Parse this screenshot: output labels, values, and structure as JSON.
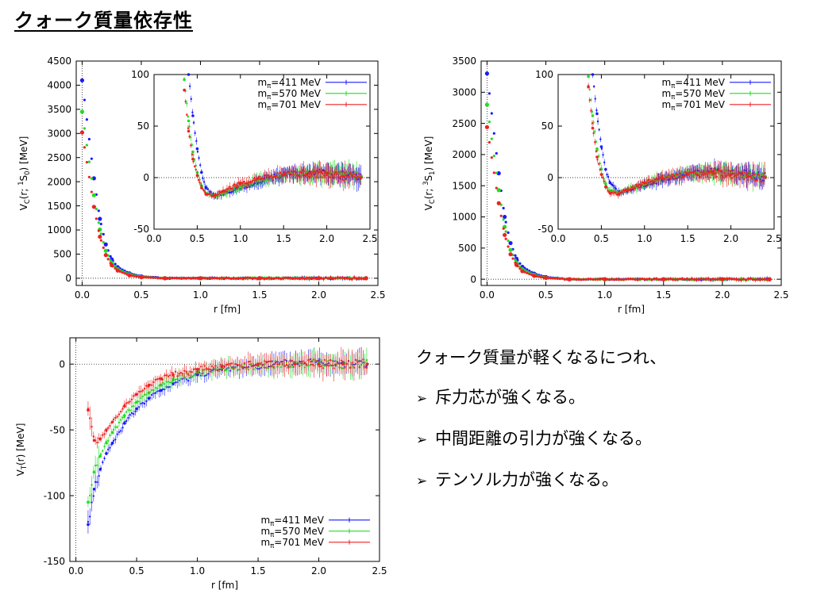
{
  "title": "クォーク質量依存性",
  "legend": [
    {
      "label": "m",
      "sub": "π",
      "value": "=411 MeV",
      "color": "#1a1aff"
    },
    {
      "label": "m",
      "sub": "π",
      "value": "=570 MeV",
      "color": "#22dd22"
    },
    {
      "label": "m",
      "sub": "π",
      "value": "=701 MeV",
      "color": "#ee2222"
    }
  ],
  "bullets": {
    "intro": "クォーク質量が軽くなるにつれ、",
    "marker": "➢",
    "items": [
      "斥力芯が強くなる。",
      "中間距離の引力が強くなる。",
      "テンソル力が強くなる。"
    ]
  },
  "chart_data": [
    {
      "type": "scatter",
      "id": "vc-1s0",
      "xlabel": "r [fm]",
      "ylabel": "V_C(r; 1S0) [MeV]",
      "ylabel_parts": {
        "base": "V",
        "sub": "C",
        "mid": "(r; ",
        "sup": "1",
        "tail_base": "S",
        "tail_sub": "0",
        "end": ") [MeV]"
      },
      "xlim": [
        -0.05,
        2.5
      ],
      "ylim": [
        -150,
        4500
      ],
      "xticks": [
        "0.0",
        "0.5",
        "1.0",
        "1.5",
        "2.0",
        "2.5"
      ],
      "yticks": [
        "0",
        "500",
        "1000",
        "1500",
        "2000",
        "2500",
        "3000",
        "3500",
        "4000",
        "4500"
      ],
      "series": [
        {
          "name": "mπ=411 MeV",
          "color": "#1a1aff",
          "x": [
            0.0,
            0.1,
            0.15,
            0.2,
            0.25,
            0.3,
            0.4,
            0.5,
            0.7,
            1.0,
            1.5,
            2.0,
            2.4
          ],
          "y": [
            4100,
            2070,
            1230,
            700,
            390,
            230,
            100,
            40,
            0,
            0,
            0,
            0,
            0
          ]
        },
        {
          "name": "mπ=570 MeV",
          "color": "#22dd22",
          "x": [
            0.0,
            0.1,
            0.15,
            0.2,
            0.25,
            0.3,
            0.4,
            0.5,
            0.7,
            1.0,
            1.5,
            2.0,
            2.4
          ],
          "y": [
            3450,
            1720,
            1010,
            570,
            320,
            190,
            80,
            30,
            0,
            0,
            0,
            0,
            0
          ]
        },
        {
          "name": "mπ=701 MeV",
          "color": "#ee2222",
          "x": [
            0.0,
            0.1,
            0.15,
            0.2,
            0.25,
            0.3,
            0.4,
            0.5,
            0.7,
            1.0,
            1.5,
            2.0,
            2.4
          ],
          "y": [
            3020,
            1480,
            860,
            480,
            270,
            160,
            60,
            20,
            0,
            0,
            0,
            0,
            0
          ]
        }
      ],
      "inset": {
        "xlim": [
          0,
          2.5
        ],
        "ylim": [
          -50,
          100
        ],
        "xticks": [
          "0.0",
          "0.5",
          "1.0",
          "1.5",
          "2.0",
          "2.5"
        ],
        "yticks": [
          "-50",
          "0",
          "50",
          "100"
        ],
        "series": [
          {
            "color": "#1a1aff",
            "x": [
              0.4,
              0.45,
              0.5,
              0.55,
              0.6,
              0.7,
              0.8,
              1.0,
              1.2,
              1.5,
              1.8,
              2.0,
              2.2,
              2.4
            ],
            "y": [
              100,
              60,
              28,
              5,
              -10,
              -18,
              -16,
              -10,
              -4,
              3,
              5,
              4,
              2,
              1
            ]
          },
          {
            "color": "#22dd22",
            "x": [
              0.35,
              0.4,
              0.45,
              0.5,
              0.55,
              0.6,
              0.7,
              0.8,
              1.0,
              1.2,
              1.5,
              1.8,
              2.0,
              2.2,
              2.4
            ],
            "y": [
              95,
              55,
              25,
              5,
              -8,
              -15,
              -18,
              -15,
              -9,
              -3,
              2,
              4,
              3,
              2,
              1
            ]
          },
          {
            "color": "#ee2222",
            "x": [
              0.35,
              0.4,
              0.45,
              0.5,
              0.55,
              0.6,
              0.7,
              0.8,
              1.0,
              1.2,
              1.5,
              1.8,
              2.0,
              2.2,
              2.4
            ],
            "y": [
              85,
              45,
              18,
              2,
              -10,
              -16,
              -17,
              -13,
              -6,
              -1,
              3,
              4,
              3,
              1,
              0
            ]
          }
        ]
      }
    },
    {
      "type": "scatter",
      "id": "vc-3s1",
      "xlabel": "r [fm]",
      "ylabel": "V_C(r; 3S1) [MeV]",
      "ylabel_parts": {
        "base": "V",
        "sub": "C",
        "mid": "(r; ",
        "sup": "3",
        "tail_base": "S",
        "tail_sub": "1",
        "end": ") [MeV]"
      },
      "xlim": [
        -0.05,
        2.5
      ],
      "ylim": [
        -100,
        3500
      ],
      "xticks": [
        "0.0",
        "0.5",
        "1.0",
        "1.5",
        "2.0",
        "2.5"
      ],
      "yticks": [
        "0",
        "500",
        "1000",
        "1500",
        "2000",
        "2500",
        "3000",
        "3500"
      ],
      "series": [
        {
          "name": "mπ=411 MeV",
          "color": "#1a1aff",
          "x": [
            0.0,
            0.1,
            0.15,
            0.2,
            0.25,
            0.3,
            0.4,
            0.5,
            0.7,
            1.0,
            1.5,
            2.0,
            2.4
          ],
          "y": [
            3300,
            1700,
            1000,
            580,
            330,
            200,
            90,
            35,
            0,
            0,
            0,
            0,
            0
          ]
        },
        {
          "name": "mπ=570 MeV",
          "color": "#22dd22",
          "x": [
            0.0,
            0.1,
            0.15,
            0.2,
            0.25,
            0.3,
            0.4,
            0.5,
            0.7,
            1.0,
            1.5,
            2.0,
            2.4
          ],
          "y": [
            2800,
            1430,
            840,
            470,
            270,
            160,
            70,
            25,
            0,
            0,
            0,
            0,
            0
          ]
        },
        {
          "name": "mπ=701 MeV",
          "color": "#ee2222",
          "x": [
            0.0,
            0.1,
            0.15,
            0.2,
            0.25,
            0.3,
            0.4,
            0.5,
            0.7,
            1.0,
            1.5,
            2.0,
            2.4
          ],
          "y": [
            2440,
            1220,
            710,
            400,
            230,
            130,
            55,
            20,
            0,
            0,
            0,
            0,
            0
          ]
        }
      ],
      "inset": {
        "xlim": [
          0,
          2.5
        ],
        "ylim": [
          -50,
          100
        ],
        "xticks": [
          "0.0",
          "0.5",
          "1.0",
          "1.5",
          "2.0",
          "2.5"
        ],
        "yticks": [
          "-50",
          "0",
          "50",
          "100"
        ],
        "series": [
          {
            "color": "#1a1aff",
            "x": [
              0.4,
              0.45,
              0.5,
              0.55,
              0.6,
              0.7,
              0.8,
              1.0,
              1.2,
              1.5,
              1.8,
              2.0,
              2.2,
              2.4
            ],
            "y": [
              100,
              62,
              30,
              8,
              -5,
              -14,
              -13,
              -8,
              -2,
              4,
              6,
              5,
              3,
              1
            ]
          },
          {
            "color": "#22dd22",
            "x": [
              0.35,
              0.4,
              0.45,
              0.5,
              0.55,
              0.6,
              0.7,
              0.8,
              1.0,
              1.2,
              1.5,
              1.8,
              2.0,
              2.2,
              2.4
            ],
            "y": [
              98,
              60,
              28,
              8,
              -6,
              -13,
              -15,
              -12,
              -6,
              0,
              4,
              5,
              4,
              2,
              1
            ]
          },
          {
            "color": "#ee2222",
            "x": [
              0.35,
              0.4,
              0.45,
              0.5,
              0.55,
              0.6,
              0.7,
              0.8,
              1.0,
              1.2,
              1.5,
              1.8,
              2.0,
              2.2,
              2.4
            ],
            "y": [
              88,
              48,
              20,
              3,
              -9,
              -15,
              -16,
              -12,
              -5,
              0,
              3,
              4,
              3,
              1,
              0
            ]
          }
        ]
      }
    },
    {
      "type": "scatter",
      "id": "vt",
      "xlabel": "r [fm]",
      "ylabel": "V_T(r) [MeV]",
      "ylabel_parts": {
        "base": "V",
        "sub": "T",
        "mid": "(r) [MeV]",
        "sup": "",
        "tail_base": "",
        "tail_sub": "",
        "end": ""
      },
      "xlim": [
        -0.05,
        2.5
      ],
      "ylim": [
        -150,
        20
      ],
      "xticks": [
        "0.0",
        "0.5",
        "1.0",
        "1.5",
        "2.0",
        "2.5"
      ],
      "yticks": [
        "-150",
        "-100",
        "-50",
        "0"
      ],
      "series": [
        {
          "name": "mπ=411 MeV",
          "color": "#1a1aff",
          "x": [
            0.1,
            0.15,
            0.2,
            0.25,
            0.3,
            0.4,
            0.5,
            0.6,
            0.7,
            0.8,
            1.0,
            1.2,
            1.5,
            1.8,
            2.0,
            2.2,
            2.4
          ],
          "y": [
            -122,
            -95,
            -80,
            -68,
            -60,
            -45,
            -34,
            -26,
            -20,
            -15,
            -8,
            -4,
            -1,
            1,
            2,
            1,
            0
          ]
        },
        {
          "name": "mπ=570 MeV",
          "color": "#22dd22",
          "x": [
            0.1,
            0.15,
            0.2,
            0.25,
            0.3,
            0.4,
            0.5,
            0.6,
            0.7,
            0.8,
            1.0,
            1.2,
            1.5,
            1.8,
            2.0,
            2.2,
            2.4
          ],
          "y": [
            -105,
            -82,
            -70,
            -60,
            -52,
            -39,
            -29,
            -22,
            -16,
            -12,
            -6,
            -3,
            -1,
            0,
            1,
            0,
            0
          ]
        },
        {
          "name": "mπ=701 MeV",
          "color": "#ee2222",
          "x": [
            0.1,
            0.15,
            0.2,
            0.25,
            0.3,
            0.4,
            0.5,
            0.6,
            0.7,
            0.8,
            1.0,
            1.2,
            1.5,
            1.8,
            2.0,
            2.2,
            2.4
          ],
          "y": [
            -35,
            -58,
            -57,
            -50,
            -44,
            -32,
            -23,
            -16,
            -11,
            -8,
            -4,
            -2,
            0,
            0,
            0,
            0,
            0
          ]
        }
      ]
    }
  ]
}
